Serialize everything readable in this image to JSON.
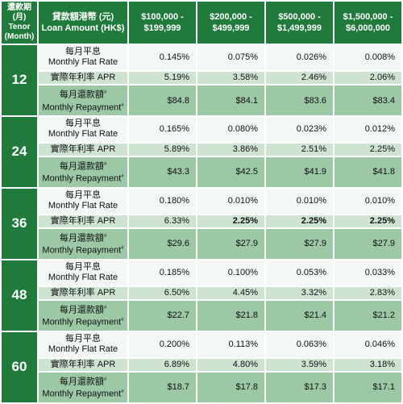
{
  "header": {
    "tenor_cn": "還款期",
    "tenor_paren": "(月)",
    "tenor_en": "Tenor",
    "tenor_en_unit": "(Month)",
    "loan_cn": "貸款額港幣 (元)",
    "loan_en": "Loan Amount (HK$)",
    "bands": [
      {
        "line1": "$100,000 -",
        "line2": "$199,999"
      },
      {
        "line1": "$200,000 -",
        "line2": "$499,999"
      },
      {
        "line1": "$500,000 -",
        "line2": "$1,499,999"
      },
      {
        "line1": "$1,500,000 -",
        "line2": "$6,000,000"
      }
    ]
  },
  "row_labels": {
    "flat_cn": "每月平息",
    "flat_en": "Monthly Flat Rate",
    "apr": "實際年利率 APR",
    "pay_cn": "每月還款額",
    "pay_en": "Monthly Repayment",
    "hash": "#"
  },
  "tenors": [
    {
      "tenor": "12",
      "flat": [
        "0.145%",
        "0.075%",
        "0.026%",
        "0.008%"
      ],
      "apr": [
        "5.19%",
        "3.58%",
        "2.46%",
        "2.06%"
      ],
      "pay": [
        "$84.8",
        "$84.1",
        "$83.6",
        "$83.4"
      ]
    },
    {
      "tenor": "24",
      "flat": [
        "0.165%",
        "0.080%",
        "0.023%",
        "0.012%"
      ],
      "apr": [
        "5.89%",
        "3.86%",
        "2.51%",
        "2.25%"
      ],
      "pay": [
        "$43.3",
        "$42.5",
        "$41.9",
        "$41.8"
      ]
    },
    {
      "tenor": "36",
      "flat": [
        "0.180%",
        "0.010%",
        "0.010%",
        "0.010%"
      ],
      "apr": [
        "6.33%",
        "2.25%",
        "2.25%",
        "2.25%"
      ],
      "pay": [
        "$29.6",
        "$27.9",
        "$27.9",
        "$27.9"
      ]
    },
    {
      "tenor": "48",
      "flat": [
        "0.185%",
        "0.100%",
        "0.053%",
        "0.033%"
      ],
      "apr": [
        "6.50%",
        "4.45%",
        "3.32%",
        "2.83%"
      ],
      "pay": [
        "$22.7",
        "$21.8",
        "$21.4",
        "$21.2"
      ]
    },
    {
      "tenor": "60",
      "flat": [
        "0.200%",
        "0.113%",
        "0.063%",
        "0.046%"
      ],
      "apr": [
        "6.89%",
        "4.80%",
        "3.59%",
        "3.18%"
      ],
      "pay": [
        "$18.7",
        "$17.8",
        "$17.3",
        "$17.1"
      ]
    }
  ],
  "colors": {
    "header_green": "#1f7a3c",
    "flat_row": "#f3f8f4",
    "apr_row": "#cfe3d3",
    "pay_row": "#9cc8a6"
  }
}
